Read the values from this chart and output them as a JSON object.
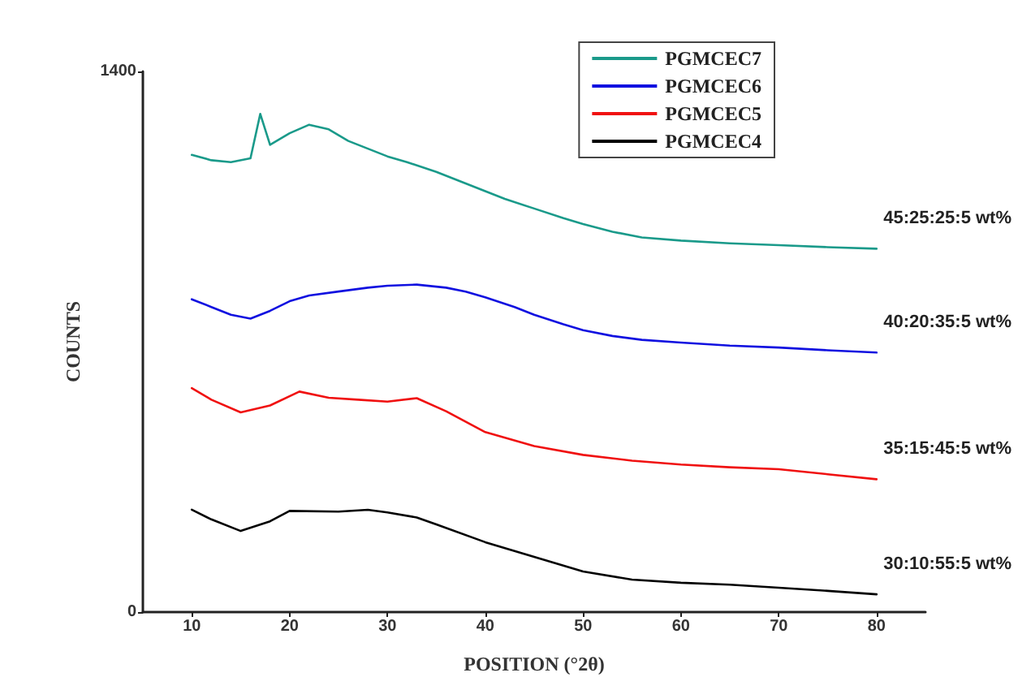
{
  "chart_data": {
    "type": "line",
    "xlabel": "POSITION (°2θ)",
    "ylabel": "COUNTS",
    "xlim": [
      5,
      85
    ],
    "xticks": [
      10,
      20,
      30,
      40,
      50,
      60,
      70,
      80
    ],
    "ylim": [
      0,
      1400
    ],
    "yticks": [
      0,
      1400
    ],
    "grid": false,
    "legend": "top right",
    "marker": "none",
    "line_style": "solid",
    "annotations": [
      "45:25:25:5 wt%",
      "40:20:35:5 wt%",
      "35:15:45:5 wt%",
      "30:10:55:5 wt%"
    ],
    "series": [
      {
        "name": "PGMCEC7",
        "color": "#1a9a8a",
        "x": [
          10,
          12,
          14,
          16,
          17,
          18,
          20,
          22,
          24,
          26,
          28,
          30,
          32,
          35,
          38,
          40,
          42,
          45,
          48,
          50,
          53,
          56,
          60,
          65,
          70,
          75,
          80
        ],
        "values": [
          1184,
          1170,
          1165,
          1175,
          1290,
          1210,
          1240,
          1262,
          1250,
          1220,
          1200,
          1180,
          1165,
          1140,
          1110,
          1090,
          1070,
          1045,
          1020,
          1005,
          985,
          970,
          962,
          955,
          950,
          945,
          941
        ]
      },
      {
        "name": "PGMCEC6",
        "color": "#1010e0",
        "x": [
          10,
          12,
          14,
          16,
          18,
          20,
          22,
          25,
          28,
          30,
          33,
          36,
          38,
          40,
          43,
          45,
          48,
          50,
          53,
          56,
          60,
          65,
          70,
          75,
          80
        ],
        "values": [
          810,
          790,
          770,
          760,
          780,
          805,
          820,
          830,
          840,
          845,
          848,
          840,
          830,
          815,
          790,
          770,
          745,
          730,
          715,
          705,
          698,
          690,
          685,
          678,
          672
        ]
      },
      {
        "name": "PGMCEC5",
        "color": "#f01010",
        "x": [
          10,
          12,
          15,
          18,
          21,
          24,
          27,
          30,
          33,
          36,
          40,
          45,
          50,
          55,
          60,
          65,
          70,
          75,
          80
        ],
        "values": [
          580,
          550,
          517,
          535,
          571,
          555,
          550,
          545,
          554,
          520,
          466,
          430,
          407,
          392,
          382,
          375,
          370,
          357,
          344
        ]
      },
      {
        "name": "PGMCEC4",
        "color": "#000000",
        "x": [
          10,
          12,
          15,
          18,
          20,
          25,
          28,
          30,
          33,
          35,
          40,
          45,
          50,
          55,
          60,
          65,
          70,
          75,
          80
        ],
        "values": [
          265,
          240,
          210,
          235,
          262,
          260,
          265,
          258,
          245,
          227,
          181,
          143,
          105,
          84,
          76,
          71,
          63,
          55,
          46
        ]
      }
    ]
  }
}
